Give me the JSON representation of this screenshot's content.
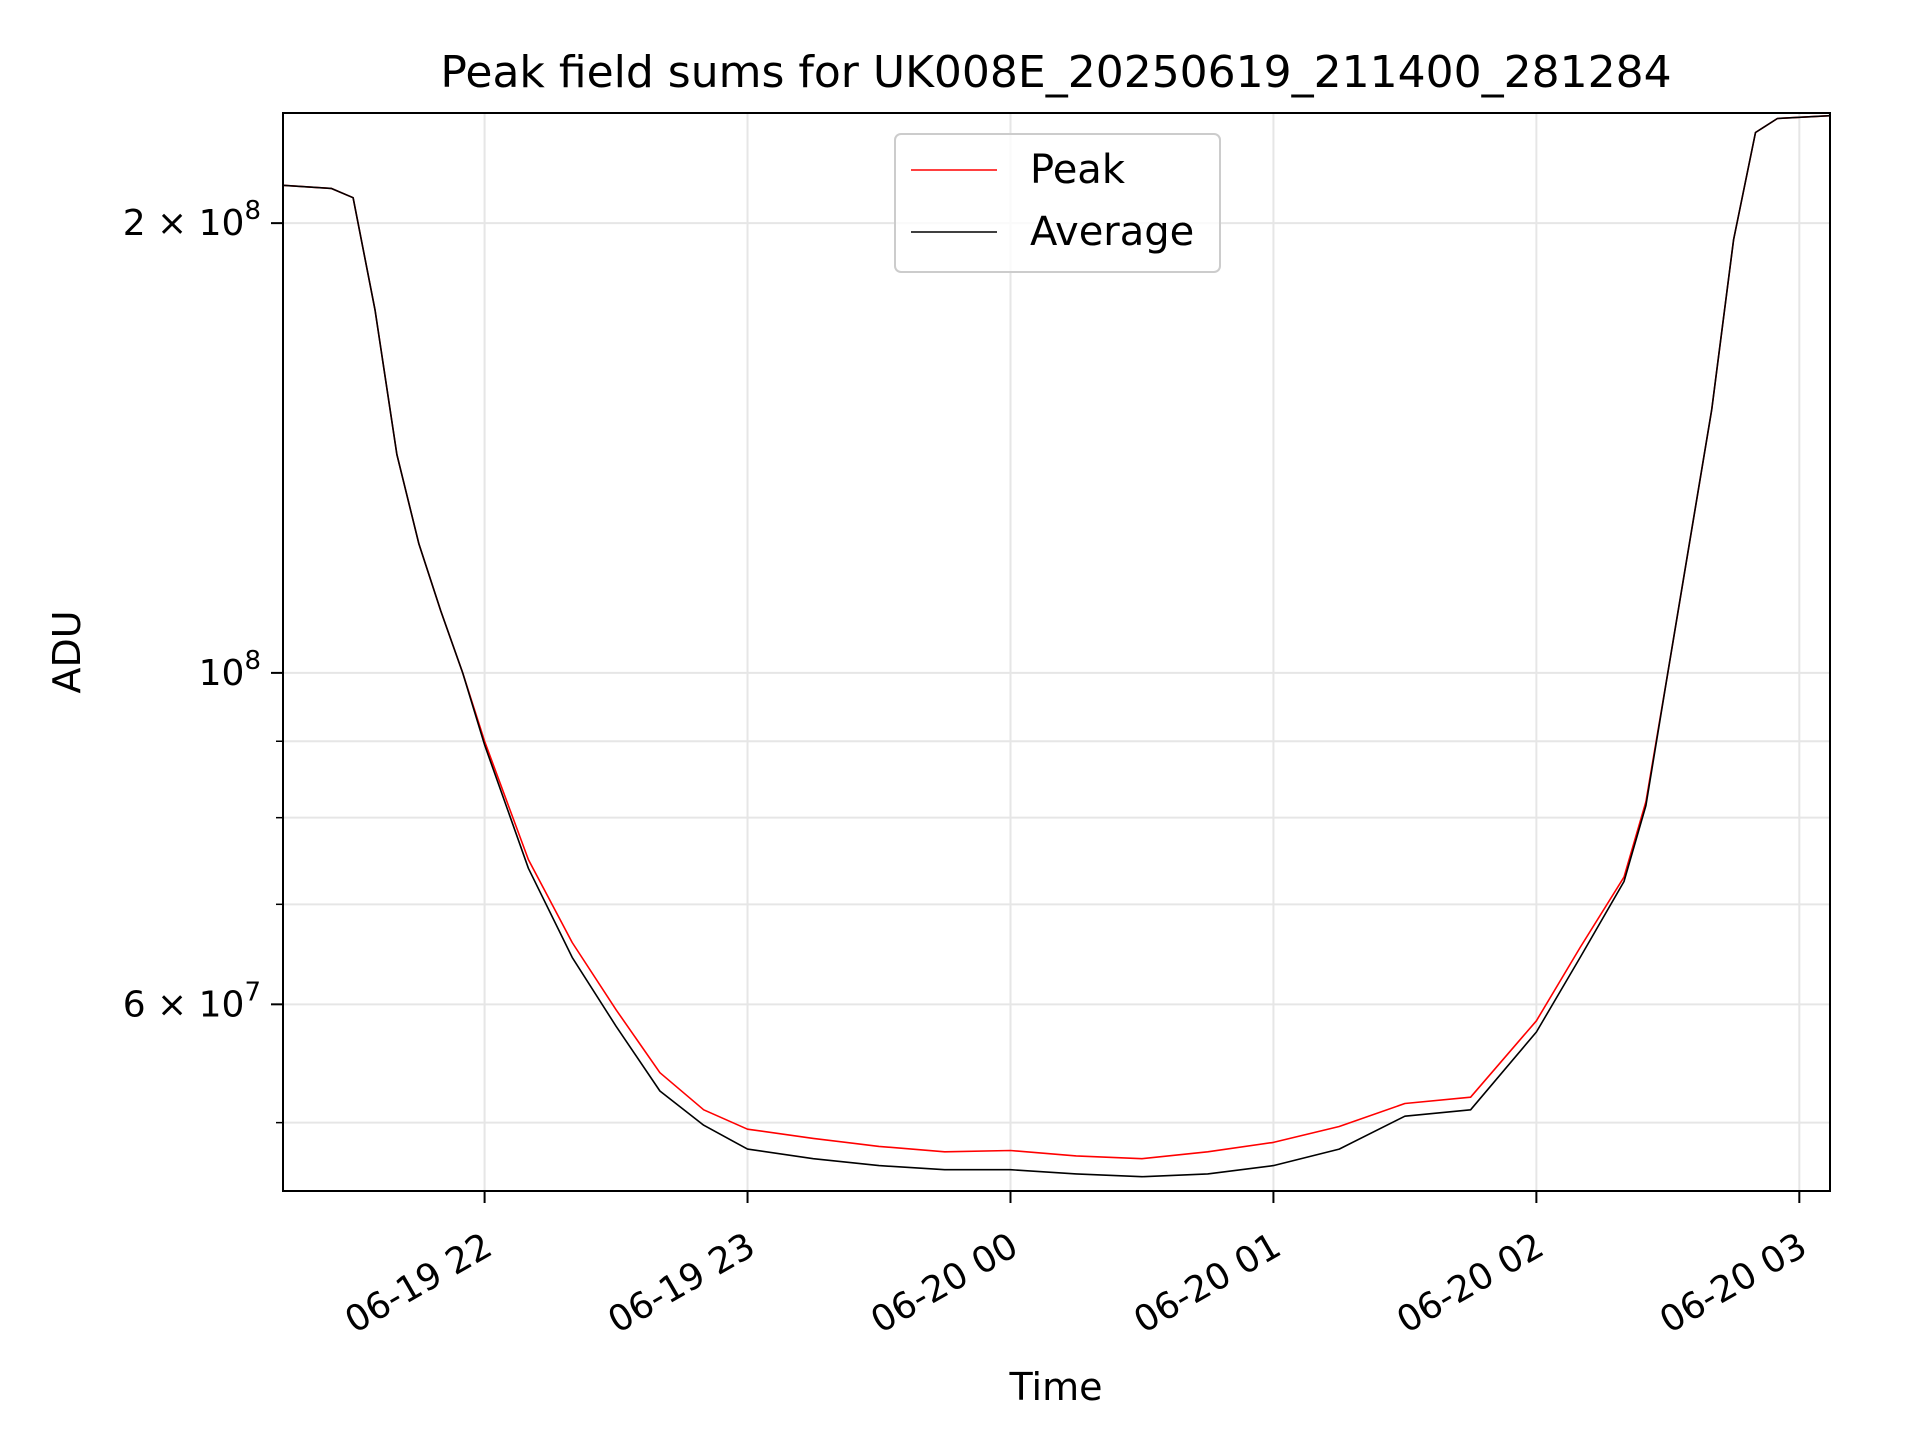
{
  "chart_data": {
    "type": "line",
    "title": "Peak field sums for UK008E_20250619_211400_281284",
    "xlabel": "Time",
    "ylabel": "ADU",
    "yscale": "log",
    "xlim": [
      "2025-06-19 21:14",
      "2025-06-20 03:07"
    ],
    "ylim": [
      45000000,
      237000000
    ],
    "grid": true,
    "legend_position": "top-center",
    "x_ticks": [
      {
        "value": "2025-06-19 22:00",
        "label": "06-19 22"
      },
      {
        "value": "2025-06-19 23:00",
        "label": "06-19 23"
      },
      {
        "value": "2025-06-20 00:00",
        "label": "06-20 00"
      },
      {
        "value": "2025-06-20 01:00",
        "label": "06-20 01"
      },
      {
        "value": "2025-06-20 02:00",
        "label": "06-20 02"
      },
      {
        "value": "2025-06-20 03:00",
        "label": "06-20 03"
      }
    ],
    "y_ticks_labeled": [
      {
        "value": 60000000,
        "label": "6 × 10^7",
        "mantissa": "6 × 10",
        "exponent": "7"
      },
      {
        "value": 100000000,
        "label": "10^8",
        "mantissa": "10",
        "exponent": "8"
      },
      {
        "value": 200000000,
        "label": "2 × 10^8",
        "mantissa": "2 × 10",
        "exponent": "8"
      }
    ],
    "y_ticks_minor": [
      50000000,
      70000000,
      80000000,
      90000000
    ],
    "series": [
      {
        "name": "Peak",
        "color": "#ff0000",
        "x": [
          "2025-06-19 21:14",
          "2025-06-19 21:25",
          "2025-06-19 21:30",
          "2025-06-19 21:35",
          "2025-06-19 21:40",
          "2025-06-19 21:45",
          "2025-06-19 21:50",
          "2025-06-19 21:55",
          "2025-06-19 22:00",
          "2025-06-19 22:10",
          "2025-06-19 22:20",
          "2025-06-19 22:30",
          "2025-06-19 22:40",
          "2025-06-19 22:50",
          "2025-06-19 23:00",
          "2025-06-19 23:15",
          "2025-06-19 23:30",
          "2025-06-19 23:45",
          "2025-06-20 00:00",
          "2025-06-20 00:15",
          "2025-06-20 00:30",
          "2025-06-20 00:45",
          "2025-06-20 01:00",
          "2025-06-20 01:15",
          "2025-06-20 01:30",
          "2025-06-20 01:45",
          "2025-06-20 02:00",
          "2025-06-20 02:10",
          "2025-06-20 02:20",
          "2025-06-20 02:25",
          "2025-06-20 02:30",
          "2025-06-20 02:40",
          "2025-06-20 02:45",
          "2025-06-20 02:50",
          "2025-06-20 02:55",
          "2025-06-20 03:07"
        ],
        "y": [
          212000000,
          211000000,
          208000000,
          175000000,
          140000000,
          122000000,
          110000000,
          100000000,
          90000000,
          75000000,
          66000000,
          59500000,
          54000000,
          51000000,
          49500000,
          48800000,
          48200000,
          47800000,
          47900000,
          47500000,
          47300000,
          47800000,
          48500000,
          49700000,
          51500000,
          52000000,
          58500000,
          65500000,
          73000000,
          82000000,
          100000000,
          150000000,
          195000000,
          230000000,
          235000000,
          236000000
        ]
      },
      {
        "name": "Average",
        "color": "#000000",
        "x": [
          "2025-06-19 21:14",
          "2025-06-19 21:25",
          "2025-06-19 21:30",
          "2025-06-19 21:35",
          "2025-06-19 21:40",
          "2025-06-19 21:45",
          "2025-06-19 21:50",
          "2025-06-19 21:55",
          "2025-06-19 22:00",
          "2025-06-19 22:10",
          "2025-06-19 22:20",
          "2025-06-19 22:30",
          "2025-06-19 22:40",
          "2025-06-19 22:50",
          "2025-06-19 23:00",
          "2025-06-19 23:15",
          "2025-06-19 23:30",
          "2025-06-19 23:45",
          "2025-06-20 00:00",
          "2025-06-20 00:15",
          "2025-06-20 00:30",
          "2025-06-20 00:45",
          "2025-06-20 01:00",
          "2025-06-20 01:15",
          "2025-06-20 01:30",
          "2025-06-20 01:45",
          "2025-06-20 02:00",
          "2025-06-20 02:10",
          "2025-06-20 02:20",
          "2025-06-20 02:25",
          "2025-06-20 02:30",
          "2025-06-20 02:40",
          "2025-06-20 02:45",
          "2025-06-20 02:50",
          "2025-06-20 02:55",
          "2025-06-20 03:07"
        ],
        "y": [
          212000000,
          211000000,
          208000000,
          175000000,
          140000000,
          122000000,
          110000000,
          100000000,
          89500000,
          74000000,
          64500000,
          58000000,
          52500000,
          49800000,
          48000000,
          47300000,
          46800000,
          46500000,
          46500000,
          46200000,
          46000000,
          46200000,
          46800000,
          48000000,
          50500000,
          51000000,
          57500000,
          64500000,
          72500000,
          81500000,
          100000000,
          150000000,
          195000000,
          230000000,
          235000000,
          236000000
        ]
      }
    ]
  }
}
